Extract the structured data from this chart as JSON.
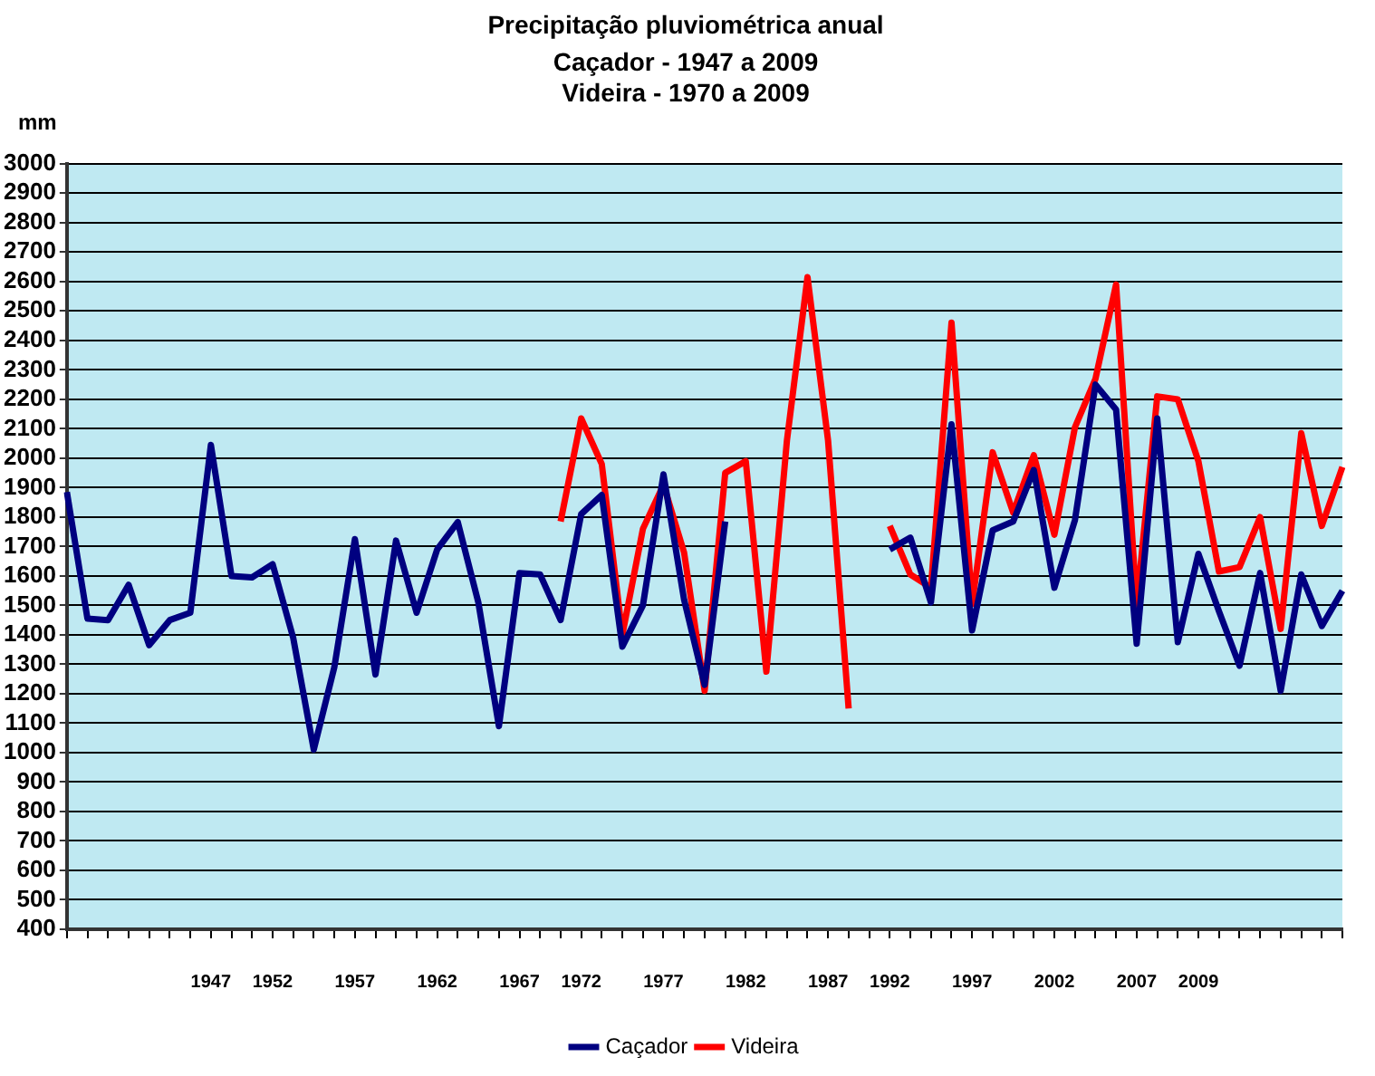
{
  "chart_data": {
    "type": "line",
    "title": "Precipitação pluviométrica anual",
    "subtitle": "Caçador - 1947 a 2009\nVideira - 1970 a 2009",
    "ylabel": "mm",
    "categories": [
      null,
      null,
      null,
      null,
      null,
      null,
      null,
      "1947",
      null,
      null,
      "1952",
      null,
      null,
      null,
      "1957",
      null,
      null,
      null,
      "1962",
      null,
      null,
      null,
      "1967",
      null,
      null,
      "1972",
      null,
      null,
      null,
      "1977",
      null,
      null,
      null,
      "1982",
      null,
      null,
      null,
      "1987",
      null,
      null,
      "1992",
      null,
      null,
      null,
      "1997",
      null,
      null,
      null,
      "2002",
      null,
      null,
      null,
      "2007",
      null,
      null,
      "2009",
      null,
      null,
      null,
      null,
      null,
      null,
      null
    ],
    "series": [
      {
        "name": "Caçador",
        "color": "#000080",
        "values": [
          1885,
          1455,
          1450,
          1570,
          1365,
          1450,
          1475,
          2045,
          1600,
          1595,
          1640,
          1390,
          1010,
          1290,
          1725,
          1265,
          1720,
          1475,
          1690,
          1783,
          1510,
          1090,
          1610,
          1605,
          1450,
          1810,
          1875,
          1360,
          1500,
          1945,
          1520,
          1230,
          1785,
          null,
          null,
          null,
          null,
          null,
          null,
          null,
          1690,
          1730,
          1510,
          2115,
          1415,
          1755,
          1785,
          1960,
          1560,
          1790,
          2250,
          2165,
          1370,
          2135,
          1375,
          1675,
          1480,
          1295,
          1610,
          1210,
          1605,
          1430,
          1550
        ]
      },
      {
        "name": "Videira",
        "color": "#ff0000",
        "values": [
          null,
          null,
          null,
          null,
          null,
          null,
          null,
          null,
          null,
          null,
          null,
          null,
          null,
          null,
          null,
          null,
          null,
          null,
          null,
          null,
          null,
          null,
          null,
          null,
          1785,
          2135,
          1980,
          1400,
          1760,
          1910,
          1680,
          1210,
          1950,
          1990,
          1275,
          2060,
          2615,
          2060,
          1150,
          null,
          1770,
          1605,
          1560,
          2460,
          1505,
          2020,
          1815,
          2010,
          1740,
          2105,
          2270,
          2590,
          1500,
          2210,
          2200,
          1990,
          1615,
          1630,
          1800,
          1420,
          2085,
          1770,
          1970
        ]
      }
    ],
    "ylim": [
      400,
      3000
    ],
    "yticks": [
      400,
      500,
      600,
      700,
      800,
      900,
      1000,
      1100,
      1200,
      1300,
      1400,
      1500,
      1600,
      1700,
      1800,
      1900,
      2000,
      2100,
      2200,
      2300,
      2400,
      2500,
      2600,
      2700,
      2800,
      2900,
      3000
    ],
    "grid": "y",
    "legend": "bottom",
    "marker": "none",
    "line_style": "solid"
  }
}
